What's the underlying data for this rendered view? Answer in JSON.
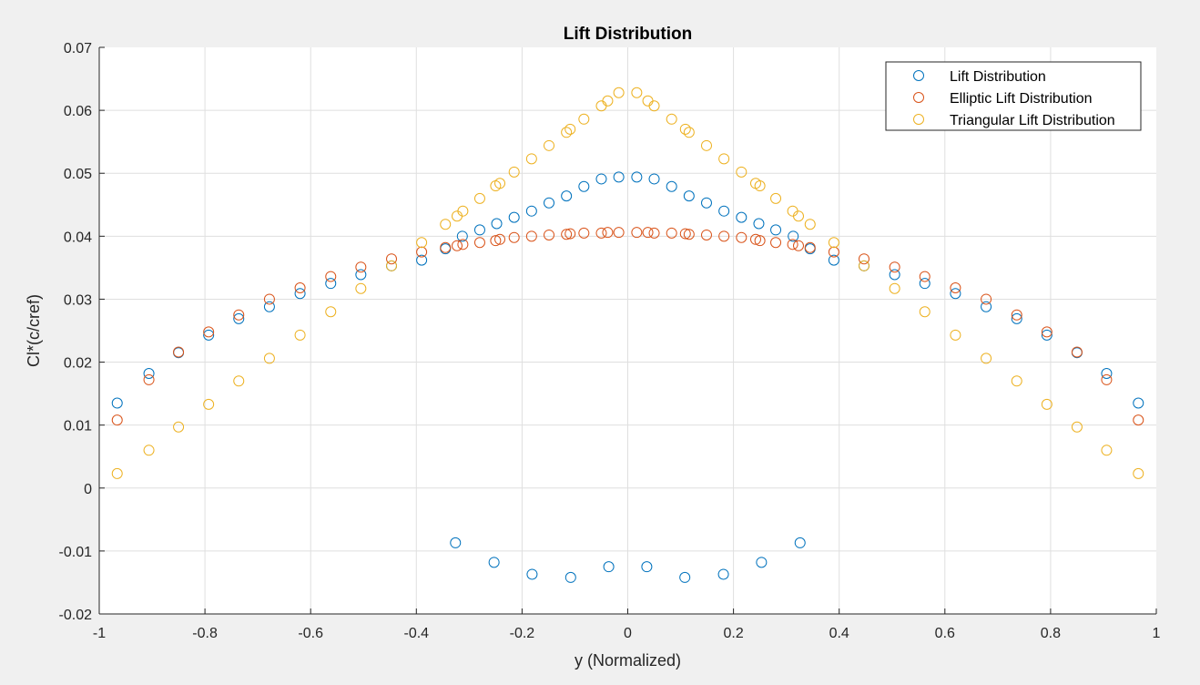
{
  "chart_data": {
    "type": "scatter",
    "title": "Lift Distribution",
    "xlabel": "y (Normalized)",
    "ylabel": "Cl*(c/cref)",
    "xlim": [
      -1,
      1
    ],
    "ylim": [
      -0.02,
      0.07
    ],
    "x_ticks": [
      -1,
      -0.8,
      -0.6,
      -0.4,
      -0.2,
      0,
      0.2,
      0.4,
      0.6,
      0.8,
      1
    ],
    "x_tick_labels": [
      "-1",
      "-0.8",
      "-0.6",
      "-0.4",
      "-0.2",
      "0",
      "0.2",
      "0.4",
      "0.6",
      "0.8",
      "1"
    ],
    "y_ticks": [
      -0.02,
      -0.01,
      0,
      0.01,
      0.02,
      0.03,
      0.04,
      0.05,
      0.06,
      0.07
    ],
    "y_tick_labels": [
      "-0.02",
      "-0.01",
      "0",
      "0.01",
      "0.02",
      "0.03",
      "0.04",
      "0.05",
      "0.06",
      "0.07"
    ],
    "grid": true,
    "legend_position": "top-right",
    "marker": "open-circle",
    "series": [
      {
        "name": "Lift Distribution",
        "color": "#0072BD",
        "points": [
          [
            -0.966,
            0.0135
          ],
          [
            -0.906,
            0.0182
          ],
          [
            -0.85,
            0.0215
          ],
          [
            -0.793,
            0.0243
          ],
          [
            -0.736,
            0.0269
          ],
          [
            -0.678,
            0.0288
          ],
          [
            -0.62,
            0.0309
          ],
          [
            -0.562,
            0.0325
          ],
          [
            -0.505,
            0.0339
          ],
          [
            -0.447,
            0.0353
          ],
          [
            -0.39,
            0.0362
          ],
          [
            -0.345,
            0.038
          ],
          [
            -0.313,
            0.04
          ],
          [
            -0.28,
            0.041
          ],
          [
            -0.248,
            0.042
          ],
          [
            -0.215,
            0.043
          ],
          [
            -0.182,
            0.044
          ],
          [
            -0.149,
            0.0453
          ],
          [
            -0.116,
            0.0464
          ],
          [
            -0.083,
            0.0479
          ],
          [
            -0.05,
            0.0491
          ],
          [
            -0.017,
            0.0494
          ],
          [
            0.017,
            0.0494
          ],
          [
            0.05,
            0.0491
          ],
          [
            0.083,
            0.0479
          ],
          [
            0.116,
            0.0464
          ],
          [
            0.149,
            0.0453
          ],
          [
            0.182,
            0.044
          ],
          [
            0.215,
            0.043
          ],
          [
            0.248,
            0.042
          ],
          [
            0.28,
            0.041
          ],
          [
            0.313,
            0.04
          ],
          [
            0.345,
            0.038
          ],
          [
            0.39,
            0.0362
          ],
          [
            0.447,
            0.0353
          ],
          [
            0.505,
            0.0339
          ],
          [
            0.562,
            0.0325
          ],
          [
            0.62,
            0.0309
          ],
          [
            0.678,
            0.0288
          ],
          [
            0.736,
            0.0269
          ],
          [
            0.793,
            0.0243
          ],
          [
            0.85,
            0.0215
          ],
          [
            0.906,
            0.0182
          ],
          [
            0.966,
            0.0135
          ],
          [
            -0.326,
            -0.0087
          ],
          [
            -0.253,
            -0.0118
          ],
          [
            -0.181,
            -0.0137
          ],
          [
            -0.108,
            -0.0142
          ],
          [
            -0.036,
            -0.0125
          ],
          [
            0.036,
            -0.0125
          ],
          [
            0.108,
            -0.0142
          ],
          [
            0.181,
            -0.0137
          ],
          [
            0.253,
            -0.0118
          ],
          [
            0.326,
            -0.0087
          ]
        ]
      },
      {
        "name": "Elliptic Lift Distribution",
        "color": "#D95319",
        "points": [
          [
            -0.966,
            0.0108
          ],
          [
            -0.906,
            0.0172
          ],
          [
            -0.85,
            0.0216
          ],
          [
            -0.793,
            0.0248
          ],
          [
            -0.736,
            0.0275
          ],
          [
            -0.678,
            0.03
          ],
          [
            -0.62,
            0.0318
          ],
          [
            -0.562,
            0.0336
          ],
          [
            -0.505,
            0.0351
          ],
          [
            -0.447,
            0.0364
          ],
          [
            -0.39,
            0.0375
          ],
          [
            -0.345,
            0.0382
          ],
          [
            -0.323,
            0.0385
          ],
          [
            -0.312,
            0.0387
          ],
          [
            -0.28,
            0.039
          ],
          [
            -0.25,
            0.0393
          ],
          [
            -0.242,
            0.0395
          ],
          [
            -0.215,
            0.0398
          ],
          [
            -0.182,
            0.04
          ],
          [
            -0.149,
            0.0402
          ],
          [
            -0.116,
            0.0403
          ],
          [
            -0.109,
            0.0404
          ],
          [
            -0.083,
            0.0405
          ],
          [
            -0.05,
            0.0405
          ],
          [
            -0.038,
            0.0406
          ],
          [
            -0.017,
            0.0406
          ],
          [
            0.017,
            0.0406
          ],
          [
            0.038,
            0.0406
          ],
          [
            0.05,
            0.0405
          ],
          [
            0.083,
            0.0405
          ],
          [
            0.109,
            0.0404
          ],
          [
            0.116,
            0.0403
          ],
          [
            0.149,
            0.0402
          ],
          [
            0.182,
            0.04
          ],
          [
            0.215,
            0.0398
          ],
          [
            0.242,
            0.0395
          ],
          [
            0.25,
            0.0393
          ],
          [
            0.28,
            0.039
          ],
          [
            0.312,
            0.0387
          ],
          [
            0.323,
            0.0385
          ],
          [
            0.345,
            0.0382
          ],
          [
            0.39,
            0.0375
          ],
          [
            0.447,
            0.0364
          ],
          [
            0.505,
            0.0351
          ],
          [
            0.562,
            0.0336
          ],
          [
            0.62,
            0.0318
          ],
          [
            0.678,
            0.03
          ],
          [
            0.736,
            0.0275
          ],
          [
            0.793,
            0.0248
          ],
          [
            0.85,
            0.0216
          ],
          [
            0.906,
            0.0172
          ],
          [
            0.966,
            0.0108
          ]
        ]
      },
      {
        "name": "Triangular Lift Distribution",
        "color": "#EDB120",
        "points": [
          [
            -0.966,
            0.0023
          ],
          [
            -0.906,
            0.006
          ],
          [
            -0.85,
            0.0097
          ],
          [
            -0.793,
            0.0133
          ],
          [
            -0.736,
            0.017
          ],
          [
            -0.678,
            0.0206
          ],
          [
            -0.62,
            0.0243
          ],
          [
            -0.562,
            0.028
          ],
          [
            -0.505,
            0.0317
          ],
          [
            -0.447,
            0.0353
          ],
          [
            -0.39,
            0.039
          ],
          [
            -0.345,
            0.0419
          ],
          [
            -0.323,
            0.0432
          ],
          [
            -0.312,
            0.044
          ],
          [
            -0.28,
            0.046
          ],
          [
            -0.25,
            0.048
          ],
          [
            -0.242,
            0.0484
          ],
          [
            -0.215,
            0.0502
          ],
          [
            -0.182,
            0.0523
          ],
          [
            -0.149,
            0.0544
          ],
          [
            -0.116,
            0.0565
          ],
          [
            -0.109,
            0.057
          ],
          [
            -0.083,
            0.0586
          ],
          [
            -0.05,
            0.0607
          ],
          [
            -0.038,
            0.0615
          ],
          [
            -0.017,
            0.0628
          ],
          [
            0.017,
            0.0628
          ],
          [
            0.038,
            0.0615
          ],
          [
            0.05,
            0.0607
          ],
          [
            0.083,
            0.0586
          ],
          [
            0.109,
            0.057
          ],
          [
            0.116,
            0.0565
          ],
          [
            0.149,
            0.0544
          ],
          [
            0.182,
            0.0523
          ],
          [
            0.215,
            0.0502
          ],
          [
            0.242,
            0.0484
          ],
          [
            0.25,
            0.048
          ],
          [
            0.28,
            0.046
          ],
          [
            0.312,
            0.044
          ],
          [
            0.323,
            0.0432
          ],
          [
            0.345,
            0.0419
          ],
          [
            0.39,
            0.039
          ],
          [
            0.447,
            0.0353
          ],
          [
            0.505,
            0.0317
          ],
          [
            0.562,
            0.028
          ],
          [
            0.62,
            0.0243
          ],
          [
            0.678,
            0.0206
          ],
          [
            0.736,
            0.017
          ],
          [
            0.793,
            0.0133
          ],
          [
            0.85,
            0.0097
          ],
          [
            0.906,
            0.006
          ],
          [
            0.966,
            0.0023
          ]
        ]
      }
    ]
  }
}
